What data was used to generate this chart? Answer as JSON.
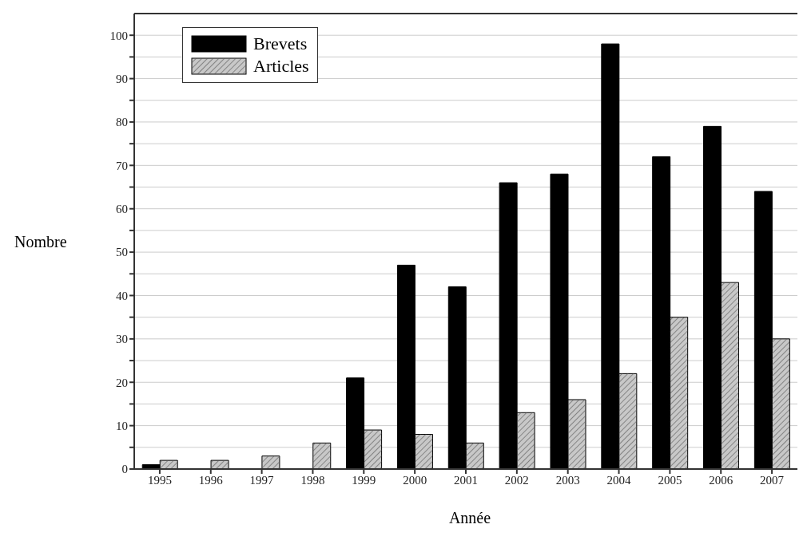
{
  "chart_data": {
    "type": "bar",
    "xlabel": "Année",
    "ylabel": "Nombre",
    "categories": [
      "1995",
      "1996",
      "1997",
      "1998",
      "1999",
      "2000",
      "2001",
      "2002",
      "2003",
      "2004",
      "2005",
      "2006",
      "2007"
    ],
    "series": [
      {
        "name": "Brevets",
        "color": "#000000",
        "values": [
          1,
          0,
          0,
          0,
          21,
          47,
          42,
          66,
          68,
          98,
          72,
          79,
          64
        ]
      },
      {
        "name": "Articles",
        "color": "#c8c8c8",
        "values": [
          2,
          2,
          3,
          6,
          9,
          8,
          6,
          13,
          16,
          22,
          35,
          43,
          30
        ]
      }
    ],
    "ylim": [
      0,
      105
    ],
    "yticks": [
      0,
      {
        "value": 5,
        "label": null
      },
      10,
      {
        "value": 15,
        "label": null
      },
      20,
      {
        "value": 25,
        "label": null
      },
      30,
      {
        "value": 35,
        "label": null
      },
      40,
      {
        "value": 45,
        "label": null
      },
      50,
      {
        "value": 55,
        "label": null
      },
      60,
      {
        "value": 65,
        "label": null
      },
      70,
      {
        "value": 75,
        "label": null
      },
      80,
      {
        "value": 85,
        "label": null
      },
      90,
      {
        "value": 95,
        "label": null
      },
      100
    ],
    "grid": "y",
    "legend": "top left"
  }
}
